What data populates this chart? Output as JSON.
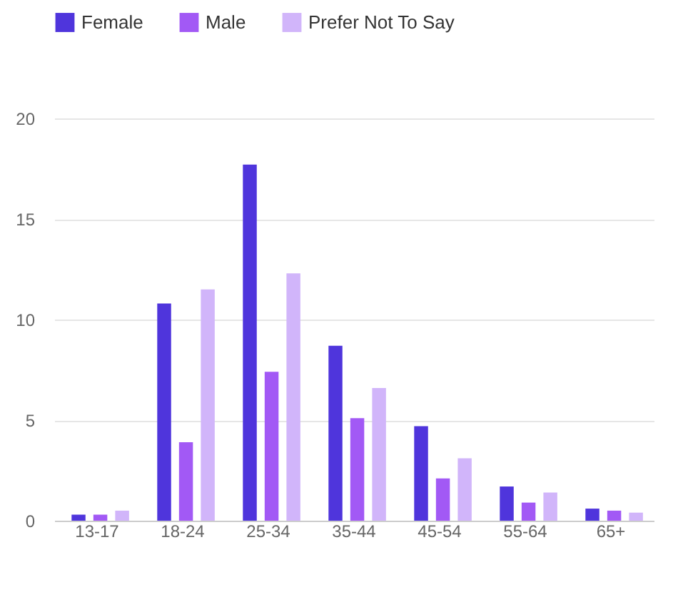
{
  "chart_data": {
    "type": "bar",
    "categories": [
      "13-17",
      "18-24",
      "25-34",
      "35-44",
      "45-54",
      "55-64",
      "65+"
    ],
    "series": [
      {
        "name": "Female",
        "color": "#4f35dc",
        "values": [
          0.3,
          10.8,
          17.7,
          8.7,
          4.7,
          1.7,
          0.6
        ]
      },
      {
        "name": "Male",
        "color": "#a259f5",
        "values": [
          0.3,
          3.9,
          7.4,
          5.1,
          2.1,
          0.9,
          0.5
        ]
      },
      {
        "name": "Prefer Not To Say",
        "color": "#d1b5fa",
        "values": [
          0.5,
          11.5,
          12.3,
          6.6,
          3.1,
          1.4,
          0.4
        ]
      }
    ],
    "ylim": [
      0,
      20
    ],
    "yticks": [
      0,
      5,
      10,
      15,
      20
    ],
    "grid": "y",
    "legend": "top left"
  }
}
